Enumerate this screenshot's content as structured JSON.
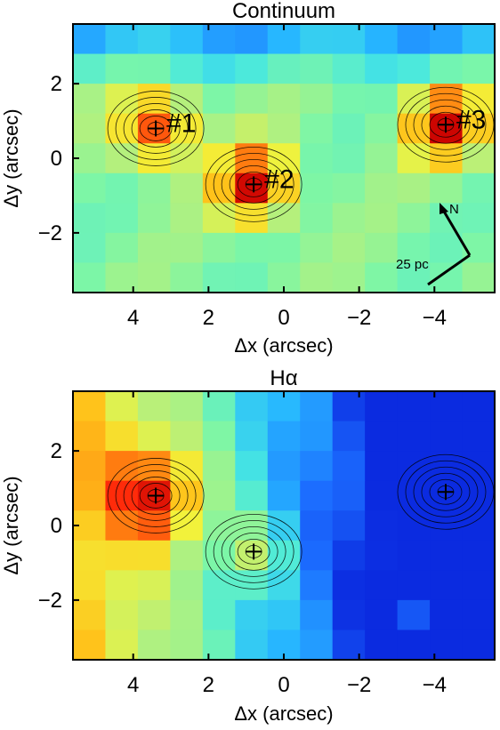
{
  "chart_data": [
    {
      "type": "heatmap",
      "title": "Continuum",
      "xlabel": "Δx (arcsec)",
      "ylabel": "Δy (arcsec)",
      "xlim": [
        5.6,
        -5.6
      ],
      "ylim": [
        -3.6,
        3.6
      ],
      "x_ticks": [
        4,
        2,
        0,
        -2,
        -4
      ],
      "x_tick_labels": [
        "4",
        "2",
        "0",
        "−2",
        "−4"
      ],
      "y_ticks": [
        -2,
        0,
        2
      ],
      "y_tick_labels": [
        "−2",
        "0",
        "2"
      ],
      "colormap": [
        "#0b2be0",
        "#1c6dff",
        "#27b8ff",
        "#48e8e0",
        "#7bf6a8",
        "#b8f07a",
        "#f2f23a",
        "#ffc21a",
        "#ff7a10",
        "#ff2a0a",
        "#c40000"
      ],
      "sources": [
        {
          "label": "#1",
          "x": 3.4,
          "y": 0.8,
          "peak": 0.85
        },
        {
          "label": "#2",
          "x": 0.8,
          "y": -0.7,
          "peak": 1.0
        },
        {
          "label": "#3",
          "x": -4.3,
          "y": 0.9,
          "peak": 0.95
        }
      ],
      "scale_bar": {
        "label": "25 pc"
      },
      "compass": {
        "label": "N"
      }
    },
    {
      "type": "heatmap",
      "title": "Hα",
      "xlabel": "Δx (arcsec)",
      "ylabel": "Δy (arcsec)",
      "xlim": [
        5.6,
        -5.6
      ],
      "ylim": [
        -3.6,
        3.6
      ],
      "x_ticks": [
        4,
        2,
        0,
        -2,
        -4
      ],
      "x_tick_labels": [
        "4",
        "2",
        "0",
        "−2",
        "−4"
      ],
      "y_ticks": [
        -2,
        0,
        2
      ],
      "y_tick_labels": [
        "−2",
        "0",
        "2"
      ],
      "sources": [
        {
          "x": 3.4,
          "y": 0.8
        },
        {
          "x": 0.8,
          "y": -0.7
        },
        {
          "x": -4.3,
          "y": 0.9
        }
      ]
    }
  ]
}
